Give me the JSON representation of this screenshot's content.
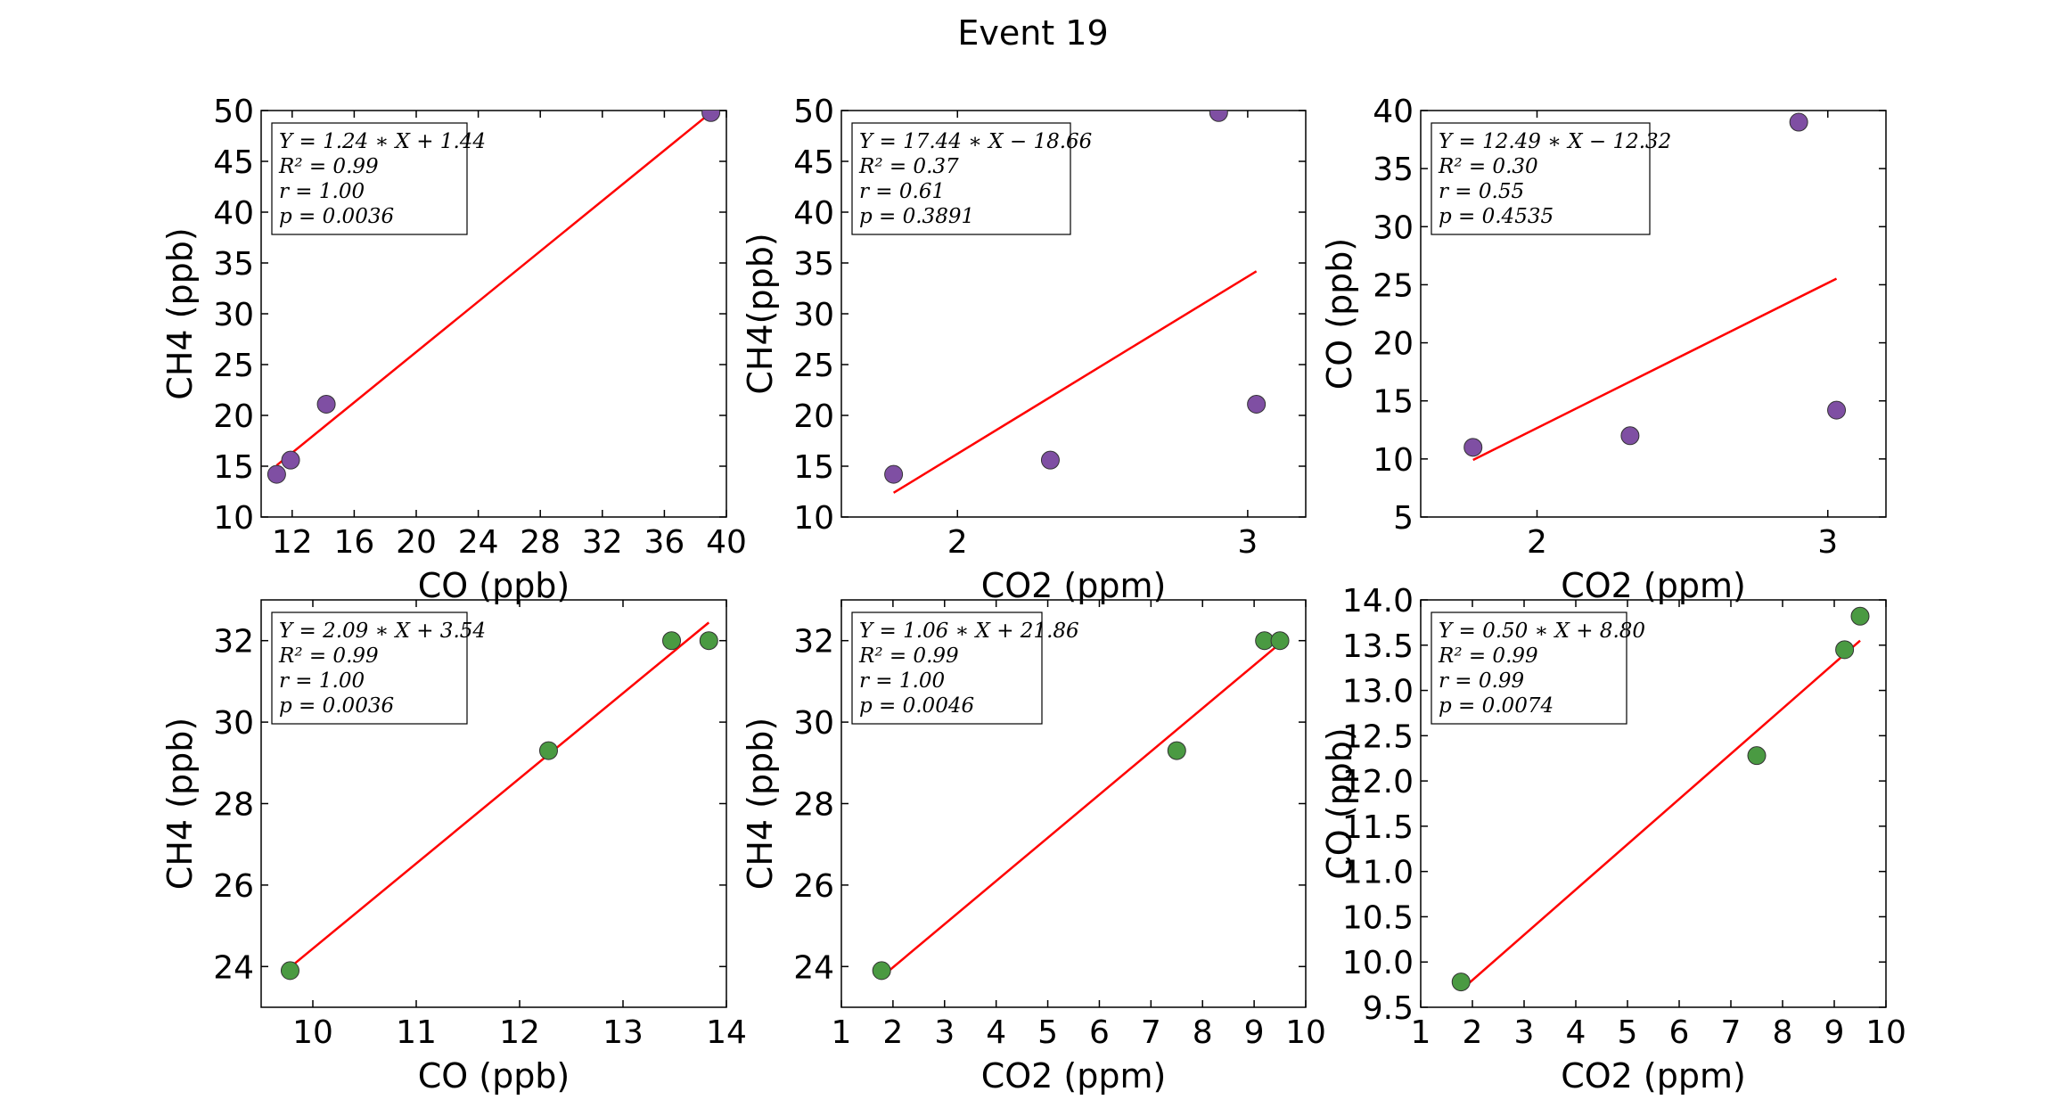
{
  "title": "Event 19",
  "colors": {
    "purple": "#7f4fa3",
    "green": "#4a9a42",
    "fit": "#ff0000"
  },
  "chart_data": [
    {
      "type": "scatter",
      "xlabel": "CO (ppb)",
      "ylabel": "CH4 (ppb)",
      "xlim": [
        10,
        40
      ],
      "ylim": [
        10,
        50
      ],
      "xticks": [
        "12",
        "16",
        "20",
        "24",
        "28",
        "32",
        "36",
        "40"
      ],
      "yticks": [
        "10",
        "15",
        "20",
        "25",
        "30",
        "35",
        "40",
        "45",
        "50"
      ],
      "series": [
        {
          "x": [
            11.0,
            11.9,
            14.2,
            39.0
          ],
          "y": [
            14.2,
            15.6,
            21.1,
            49.8
          ],
          "color": "#7f4fa3"
        }
      ],
      "fit": {
        "slope": 1.24,
        "intercept": 1.44,
        "x_range": [
          11.0,
          39.0
        ]
      },
      "annotation": [
        "Y = 1.24 ∗ X + 1.44",
        "R² = 0.99",
        "r = 1.00",
        "p = 0.0036"
      ]
    },
    {
      "type": "scatter",
      "xlabel": "CO2 (ppm)",
      "ylabel": "CH4(ppb)",
      "xlim": [
        1.6,
        3.2
      ],
      "ylim": [
        10,
        50
      ],
      "xticks": [
        "2",
        "3"
      ],
      "yticks": [
        "10",
        "15",
        "20",
        "25",
        "30",
        "35",
        "40",
        "45",
        "50"
      ],
      "series": [
        {
          "x": [
            1.78,
            2.32,
            2.9,
            3.03
          ],
          "y": [
            14.2,
            15.6,
            49.8,
            21.1
          ],
          "color": "#7f4fa3"
        }
      ],
      "fit": {
        "slope": 17.44,
        "intercept": -18.66,
        "x_range": [
          1.78,
          3.03
        ]
      },
      "annotation": [
        "Y = 17.44 ∗ X − 18.66",
        "R² = 0.37",
        "r = 0.61",
        "p = 0.3891"
      ]
    },
    {
      "type": "scatter",
      "xlabel": "CO2 (ppm)",
      "ylabel": "CO (ppb)",
      "xlim": [
        1.6,
        3.2
      ],
      "ylim": [
        5,
        40
      ],
      "xticks": [
        "2",
        "3"
      ],
      "yticks": [
        "5",
        "10",
        "15",
        "20",
        "25",
        "30",
        "35",
        "40"
      ],
      "series": [
        {
          "x": [
            1.78,
            2.32,
            2.9,
            3.03
          ],
          "y": [
            11.0,
            12.0,
            39.0,
            14.2
          ],
          "color": "#7f4fa3"
        }
      ],
      "fit": {
        "slope": 12.49,
        "intercept": -12.32,
        "x_range": [
          1.78,
          3.03
        ]
      },
      "annotation": [
        "Y = 12.49 ∗ X − 12.32",
        "R² = 0.30",
        "r = 0.55",
        "p = 0.4535"
      ]
    },
    {
      "type": "scatter",
      "xlabel": "CO (ppb)",
      "ylabel": "CH4 (ppb)",
      "xlim": [
        9.5,
        14
      ],
      "ylim": [
        23,
        33
      ],
      "xticks": [
        "10",
        "11",
        "12",
        "13",
        "14"
      ],
      "yticks": [
        "24",
        "26",
        "28",
        "30",
        "32"
      ],
      "series": [
        {
          "x": [
            9.78,
            12.28,
            13.47,
            13.83
          ],
          "y": [
            23.9,
            29.3,
            32.0,
            32.0
          ],
          "color": "#4a9a42"
        }
      ],
      "fit": {
        "slope": 2.09,
        "intercept": 3.54,
        "x_range": [
          9.78,
          13.83
        ]
      },
      "annotation": [
        "Y = 2.09 ∗ X + 3.54",
        "R² = 0.99",
        "r = 1.00",
        "p = 0.0036"
      ]
    },
    {
      "type": "scatter",
      "xlabel": "CO2 (ppm)",
      "ylabel": "CH4 (ppb)",
      "xlim": [
        1,
        10
      ],
      "ylim": [
        23,
        33
      ],
      "xticks": [
        "1",
        "2",
        "3",
        "4",
        "5",
        "6",
        "7",
        "8",
        "9",
        "10"
      ],
      "yticks": [
        "24",
        "26",
        "28",
        "30",
        "32"
      ],
      "series": [
        {
          "x": [
            1.78,
            7.5,
            9.2,
            9.5
          ],
          "y": [
            23.9,
            29.3,
            32.0,
            32.0
          ],
          "color": "#4a9a42"
        }
      ],
      "fit": {
        "slope": 1.06,
        "intercept": 21.86,
        "x_range": [
          1.78,
          9.5
        ]
      },
      "annotation": [
        "Y = 1.06 ∗ X + 21.86",
        "R² = 0.99",
        "r = 1.00",
        "p = 0.0046"
      ]
    },
    {
      "type": "scatter",
      "xlabel": "CO2 (ppm)",
      "ylabel": "CO (ppb)",
      "xlim": [
        1,
        10
      ],
      "ylim": [
        9.5,
        14
      ],
      "xticks": [
        "1",
        "2",
        "3",
        "4",
        "5",
        "6",
        "7",
        "8",
        "9",
        "10"
      ],
      "yticks": [
        "9.5",
        "10.0",
        "10.5",
        "11.0",
        "11.5",
        "12.0",
        "12.5",
        "13.0",
        "13.5",
        "14.0"
      ],
      "series": [
        {
          "x": [
            1.78,
            7.5,
            9.2,
            9.5
          ],
          "y": [
            9.78,
            12.28,
            13.45,
            13.82
          ],
          "color": "#4a9a42"
        }
      ],
      "fit": {
        "slope": 0.5,
        "intercept": 8.8,
        "x_range": [
          1.78,
          9.5
        ]
      },
      "annotation": [
        "Y = 0.50 ∗ X + 8.80",
        "R² = 0.99",
        "r = 0.99",
        "p = 0.0074"
      ]
    }
  ]
}
